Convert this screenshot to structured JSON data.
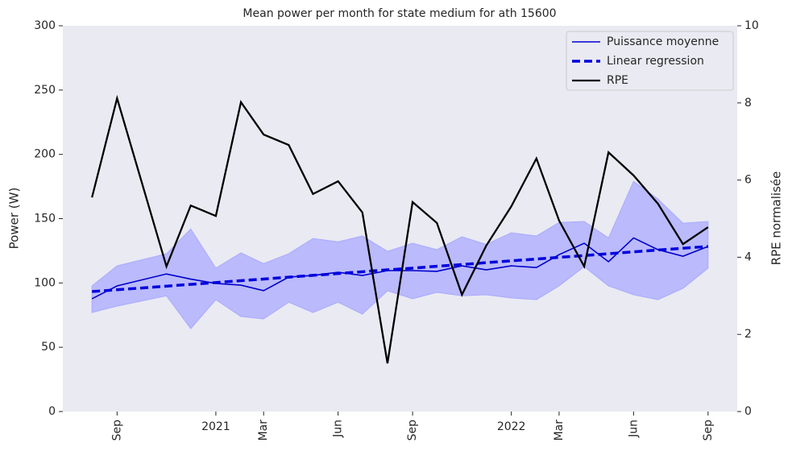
{
  "chart_data": {
    "type": "line",
    "title": "Mean power per month for state medium for ath 15600",
    "ylabel": "Power (W)",
    "y2label": "RPE normalisée",
    "x": [
      "2020-08",
      "2020-09",
      "2020-11",
      "2020-12",
      "2021-01",
      "2021-02",
      "2021-03",
      "2021-04",
      "2021-05",
      "2021-06",
      "2021-07",
      "2021-08",
      "2021-09",
      "2021-10",
      "2021-11",
      "2021-12",
      "2022-01",
      "2022-02",
      "2022-03",
      "2022-04",
      "2022-05",
      "2022-06",
      "2022-07",
      "2022-08",
      "2022-09"
    ],
    "series": [
      {
        "name": "Puissance moyenne",
        "color": "#0000cc",
        "style": "solid",
        "values": [
          87.7,
          97.7,
          107,
          103,
          99.6,
          98.3,
          94,
          104.6,
          105.8,
          108.3,
          105.8,
          109.6,
          109.6,
          109,
          113.3,
          110.2,
          113.3,
          112,
          122,
          130.9,
          116.5,
          135,
          125.9,
          120.8,
          128.4
        ]
      },
      {
        "name": "Linear regression",
        "color": "#0000dd",
        "style": "dashed",
        "values": [
          93.3,
          94.7,
          97.5,
          98.9,
          100.3,
          101.8,
          103.0,
          104.5,
          105.9,
          107.3,
          108.7,
          110.2,
          111.5,
          113.0,
          114.3,
          115.8,
          117.2,
          118.6,
          119.9,
          121.3,
          122.7,
          124.2,
          125.6,
          127.0,
          128.4
        ]
      },
      {
        "name": "RPE",
        "color": "#000000",
        "style": "solid",
        "axis": "y2",
        "values": [
          5.55,
          8.12,
          3.76,
          5.34,
          5.07,
          8.02,
          7.18,
          6.91,
          5.64,
          5.97,
          5.16,
          1.25,
          5.43,
          4.89,
          3.03,
          4.3,
          5.32,
          6.56,
          4.95,
          3.76,
          6.72,
          6.12,
          5.39,
          4.34,
          4.78
        ]
      }
    ],
    "band": {
      "color": "#aaaaff",
      "lower": [
        77,
        82,
        90,
        64.5,
        87,
        73.9,
        72,
        85,
        77,
        85,
        75.8,
        93.9,
        87.7,
        92.7,
        90,
        90.8,
        88.3,
        87,
        97.7,
        112.7,
        97.7,
        90.8,
        87,
        95.8,
        111.5
      ],
      "upper": [
        97.7,
        113.3,
        122.7,
        142,
        111.5,
        123.4,
        115,
        122.7,
        134.6,
        132,
        136.5,
        124.6,
        130.9,
        125.9,
        135.9,
        130,
        139,
        136.5,
        147,
        147.8,
        135,
        179,
        165.3,
        146.5,
        147.8
      ]
    },
    "xlim": [
      "2020-06-26",
      "2022-10-07"
    ],
    "xticks": [
      {
        "value": "2020-09",
        "label": "Sep"
      },
      {
        "value": "2021-01",
        "label": "2021"
      },
      {
        "value": "2021-03",
        "label": "Mar"
      },
      {
        "value": "2021-06",
        "label": "Jun"
      },
      {
        "value": "2021-09",
        "label": "Sep"
      },
      {
        "value": "2022-01",
        "label": "2022"
      },
      {
        "value": "2022-03",
        "label": "Mar"
      },
      {
        "value": "2022-06",
        "label": "Jun"
      },
      {
        "value": "2022-09",
        "label": "Sep"
      }
    ],
    "ylim": [
      0,
      300
    ],
    "yticks": [
      0,
      50,
      100,
      150,
      200,
      250,
      300
    ],
    "y2lim": [
      0,
      10
    ],
    "y2ticks": [
      0,
      2,
      4,
      6,
      8,
      10
    ],
    "grid": false,
    "legend": "upper right",
    "background": "#eaeaf2"
  }
}
